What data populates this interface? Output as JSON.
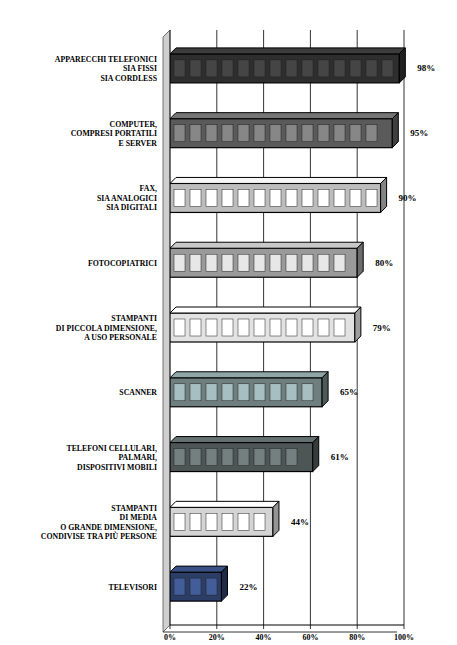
{
  "chart_data": {
    "type": "bar",
    "orientation": "horizontal",
    "categories": [
      "APPARECCHI TELEFONICI\nSIA FISSI\nSIA CORDLESS",
      "COMPUTER,\nCOMPRESI PORTATILI\nE SERVER",
      "FAX,\nSIA ANALOGICI\nSIA DIGITALI",
      "FOTOCOPIATRICI",
      "STAMPANTI\nDI PICCOLA DIMENSIONE,\nA USO PERSONALE",
      "SCANNER",
      "TELEFONI CELLULARI,\nPALMARI,\nDISPOSITIVI MOBILI",
      "STAMPANTI\nDI MEDIA\nO GRANDE DIMENSIONE,\nCONDIVISE TRA PIÙ PERSONE",
      "TELEVISORI"
    ],
    "values": [
      98,
      95,
      90,
      80,
      79,
      65,
      61,
      44,
      22
    ],
    "value_labels": [
      "98%",
      "95%",
      "90%",
      "80%",
      "79%",
      "65%",
      "61%",
      "44%",
      "22%"
    ],
    "colors": [
      "#2e2e2e",
      "#5a5a5a",
      "#bdbdbd",
      "#9a9a9a",
      "#e2e2e2",
      "#6f7f80",
      "#4d5555",
      "#d4d4d4",
      "#2c3e66"
    ],
    "xlim": [
      0,
      100
    ],
    "xticks": [
      {
        "value": 0,
        "label": "0%"
      },
      {
        "value": 20,
        "label": "20%"
      },
      {
        "value": 40,
        "label": "40%"
      },
      {
        "value": 60,
        "label": "60%"
      },
      {
        "value": 80,
        "label": "80%"
      },
      {
        "value": 100,
        "label": "100%"
      }
    ],
    "grid": true,
    "data_labels": true
  }
}
